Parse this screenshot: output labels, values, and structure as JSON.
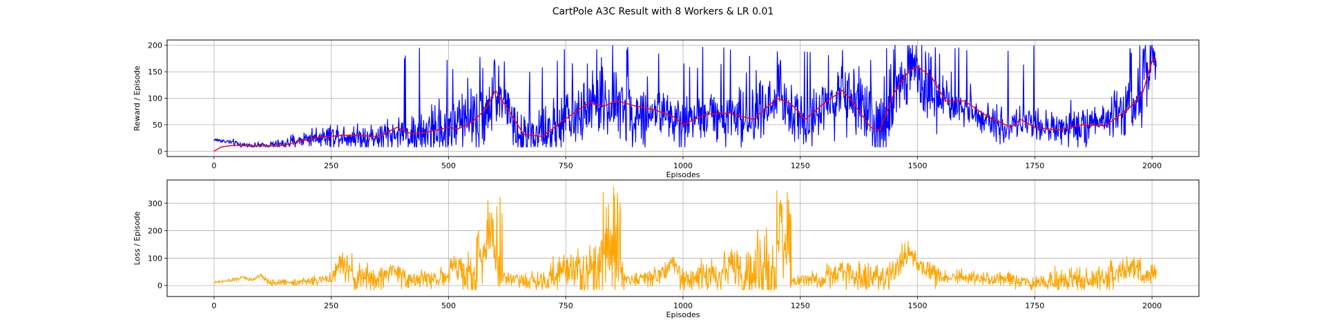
{
  "figure": {
    "title": "CartPole A3C Result with 8 Workers & LR 0.01"
  },
  "chart_data": [
    {
      "type": "line",
      "xlabel": "Episodes",
      "ylabel": "Reward / Episode",
      "xlim": [
        -100,
        2100
      ],
      "ylim": [
        -10,
        210
      ],
      "xticks": [
        0,
        250,
        500,
        750,
        1000,
        1250,
        1500,
        1750,
        2000
      ],
      "yticks": [
        0,
        50,
        100,
        150,
        200
      ],
      "grid": true,
      "n_points": 2010,
      "series": [
        {
          "color": "#0000ff",
          "kind": "noisy",
          "anchors": [
            [
              0,
              22
            ],
            [
              30,
              18
            ],
            [
              60,
              12
            ],
            [
              100,
              10
            ],
            [
              150,
              14
            ],
            [
              200,
              25
            ],
            [
              250,
              30
            ],
            [
              300,
              28
            ],
            [
              350,
              26
            ],
            [
              400,
              35
            ],
            [
              450,
              32
            ],
            [
              500,
              45
            ],
            [
              550,
              60
            ],
            [
              580,
              78
            ],
            [
              600,
              110
            ],
            [
              620,
              90
            ],
            [
              650,
              40
            ],
            [
              700,
              30
            ],
            [
              750,
              55
            ],
            [
              800,
              80
            ],
            [
              850,
              90
            ],
            [
              900,
              78
            ],
            [
              950,
              70
            ],
            [
              1000,
              55
            ],
            [
              1050,
              70
            ],
            [
              1100,
              70
            ],
            [
              1150,
              60
            ],
            [
              1200,
              100
            ],
            [
              1230,
              85
            ],
            [
              1260,
              60
            ],
            [
              1300,
              90
            ],
            [
              1340,
              110
            ],
            [
              1380,
              75
            ],
            [
              1420,
              40
            ],
            [
              1450,
              110
            ],
            [
              1480,
              155
            ],
            [
              1500,
              150
            ],
            [
              1530,
              110
            ],
            [
              1560,
              90
            ],
            [
              1600,
              90
            ],
            [
              1650,
              60
            ],
            [
              1700,
              45
            ],
            [
              1720,
              55
            ],
            [
              1750,
              45
            ],
            [
              1800,
              40
            ],
            [
              1850,
              50
            ],
            [
              1900,
              50
            ],
            [
              1950,
              80
            ],
            [
              1980,
              130
            ],
            [
              2000,
              175
            ],
            [
              2009,
              180
            ]
          ],
          "noise": [
            [
              0,
              4
            ],
            [
              150,
              8
            ],
            [
              200,
              15
            ],
            [
              400,
              30
            ],
            [
              550,
              60
            ],
            [
              700,
              40
            ],
            [
              800,
              60
            ],
            [
              1000,
              45
            ],
            [
              1200,
              50
            ],
            [
              1400,
              60
            ],
            [
              1450,
              80
            ],
            [
              1550,
              45
            ],
            [
              1700,
              25
            ],
            [
              1900,
              35
            ],
            [
              1980,
              60
            ],
            [
              2009,
              60
            ]
          ],
          "spikes": [
            [
              400,
              650,
              0.03
            ],
            [
              650,
              1000,
              0.05
            ],
            [
              1000,
              1420,
              0.035
            ],
            [
              1430,
              1530,
              0.12
            ],
            [
              1530,
              1750,
              0.02
            ],
            [
              1950,
              2009,
              0.15
            ]
          ],
          "ymin": 8,
          "ymax": 200
        },
        {
          "color": "#ff0000",
          "kind": "smooth",
          "anchors": [
            [
              0,
              0
            ],
            [
              15,
              8
            ],
            [
              40,
              11
            ],
            [
              100,
              10
            ],
            [
              140,
              10
            ],
            [
              180,
              18
            ],
            [
              220,
              26
            ],
            [
              270,
              30
            ],
            [
              300,
              30
            ],
            [
              350,
              28
            ],
            [
              390,
              45
            ],
            [
              420,
              33
            ],
            [
              450,
              35
            ],
            [
              500,
              45
            ],
            [
              520,
              42
            ],
            [
              550,
              55
            ],
            [
              580,
              80
            ],
            [
              600,
              115
            ],
            [
              630,
              75
            ],
            [
              660,
              32
            ],
            [
              700,
              28
            ],
            [
              740,
              55
            ],
            [
              780,
              80
            ],
            [
              800,
              92
            ],
            [
              830,
              85
            ],
            [
              860,
              95
            ],
            [
              900,
              85
            ],
            [
              940,
              78
            ],
            [
              980,
              65
            ],
            [
              1000,
              50
            ],
            [
              1050,
              70
            ],
            [
              1100,
              72
            ],
            [
              1150,
              60
            ],
            [
              1200,
              100
            ],
            [
              1230,
              90
            ],
            [
              1260,
              60
            ],
            [
              1300,
              90
            ],
            [
              1340,
              115
            ],
            [
              1360,
              95
            ],
            [
              1400,
              45
            ],
            [
              1420,
              40
            ],
            [
              1450,
              110
            ],
            [
              1480,
              150
            ],
            [
              1500,
              160
            ],
            [
              1530,
              140
            ],
            [
              1560,
              95
            ],
            [
              1600,
              95
            ],
            [
              1650,
              65
            ],
            [
              1700,
              45
            ],
            [
              1720,
              60
            ],
            [
              1750,
              45
            ],
            [
              1800,
              40
            ],
            [
              1850,
              50
            ],
            [
              1900,
              48
            ],
            [
              1950,
              80
            ],
            [
              1980,
              110
            ],
            [
              2000,
              170
            ],
            [
              2009,
              175
            ]
          ]
        }
      ]
    },
    {
      "type": "line",
      "xlabel": "Episodes",
      "ylabel": "Loss / Episode",
      "xlim": [
        -100,
        2100
      ],
      "ylim": [
        -40,
        385
      ],
      "xticks": [
        0,
        250,
        500,
        750,
        1000,
        1250,
        1500,
        1750,
        2000
      ],
      "yticks": [
        0,
        100,
        200,
        300
      ],
      "grid": true,
      "n_points": 2010,
      "series": [
        {
          "color": "#ffa500",
          "kind": "noisy",
          "anchors": [
            [
              0,
              10
            ],
            [
              40,
              20
            ],
            [
              60,
              30
            ],
            [
              80,
              20
            ],
            [
              100,
              35
            ],
            [
              120,
              10
            ],
            [
              200,
              15
            ],
            [
              250,
              25
            ],
            [
              270,
              80
            ],
            [
              300,
              30
            ],
            [
              350,
              20
            ],
            [
              380,
              60
            ],
            [
              420,
              20
            ],
            [
              500,
              30
            ],
            [
              510,
              80
            ],
            [
              550,
              20
            ],
            [
              590,
              200
            ],
            [
              610,
              30
            ],
            [
              700,
              15
            ],
            [
              760,
              80
            ],
            [
              800,
              15
            ],
            [
              840,
              150
            ],
            [
              870,
              30
            ],
            [
              900,
              20
            ],
            [
              950,
              40
            ],
            [
              980,
              80
            ],
            [
              1000,
              20
            ],
            [
              1080,
              40
            ],
            [
              1100,
              100
            ],
            [
              1130,
              20
            ],
            [
              1190,
              40
            ],
            [
              1210,
              170
            ],
            [
              1230,
              15
            ],
            [
              1300,
              20
            ],
            [
              1340,
              60
            ],
            [
              1380,
              20
            ],
            [
              1450,
              40
            ],
            [
              1480,
              110
            ],
            [
              1510,
              70
            ],
            [
              1550,
              30
            ],
            [
              1650,
              25
            ],
            [
              1700,
              15
            ],
            [
              1800,
              15
            ],
            [
              1900,
              20
            ],
            [
              1950,
              60
            ],
            [
              1990,
              40
            ],
            [
              2009,
              50
            ]
          ],
          "noise": [
            [
              0,
              4
            ],
            [
              250,
              15
            ],
            [
              270,
              50
            ],
            [
              500,
              25
            ],
            [
              590,
              150
            ],
            [
              620,
              20
            ],
            [
              760,
              60
            ],
            [
              840,
              160
            ],
            [
              880,
              20
            ],
            [
              1100,
              60
            ],
            [
              1200,
              160
            ],
            [
              1240,
              12
            ],
            [
              1340,
              50
            ],
            [
              1480,
              50
            ],
            [
              1600,
              20
            ],
            [
              1950,
              50
            ],
            [
              2009,
              30
            ]
          ],
          "spikes": [
            [
              580,
              620,
              0.2
            ],
            [
              830,
              870,
              0.2
            ],
            [
              1195,
              1230,
              0.25
            ]
          ],
          "ymin": -15,
          "ymax": 370
        }
      ]
    }
  ]
}
